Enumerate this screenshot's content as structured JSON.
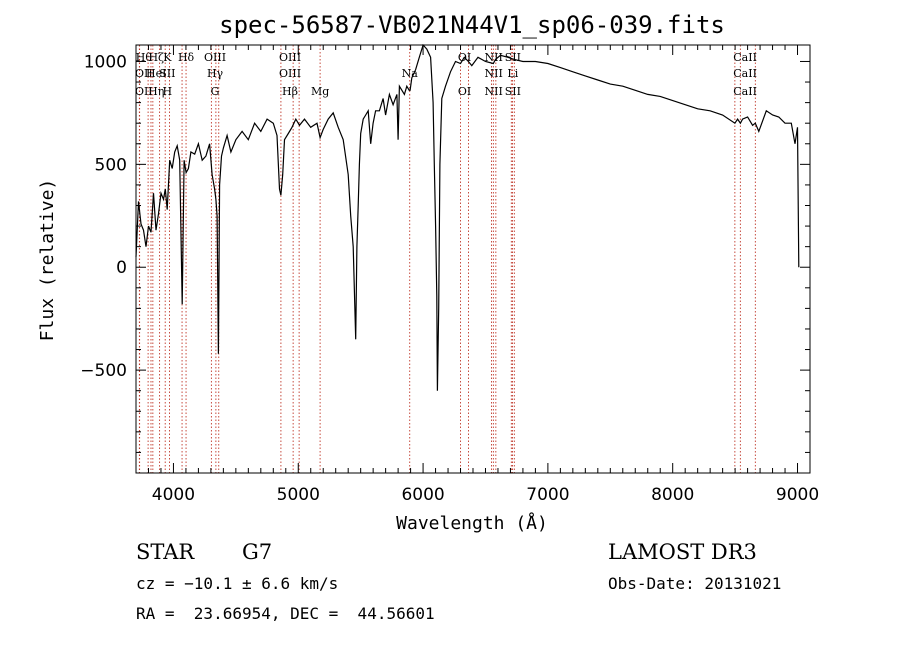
{
  "chart_data": {
    "type": "line",
    "title": "spec-56587-VB021N44V1_sp06-039.fits",
    "xlabel": "Wavelength (Å)",
    "ylabel": "Flux (relative)",
    "xlim": [
      3700,
      9100
    ],
    "ylim": [
      -1000,
      1080
    ],
    "xticks": [
      4000,
      5000,
      6000,
      7000,
      8000,
      9000
    ],
    "yticks": [
      -500,
      0,
      500,
      1000
    ],
    "xtick_labels": [
      "4000",
      "5000",
      "6000",
      "7000",
      "8000",
      "9000"
    ],
    "ytick_labels": [
      "−500",
      "0",
      "500",
      "1000"
    ],
    "grid": false,
    "series": [
      {
        "x": [
          3700,
          3720,
          3740,
          3760,
          3780,
          3800,
          3820,
          3840,
          3860,
          3880,
          3900,
          3920,
          3935,
          3950,
          3970,
          3990,
          4010,
          4030,
          4050,
          4070,
          4085,
          4101,
          4120,
          4140,
          4170,
          4200,
          4230,
          4260,
          4290,
          4310,
          4330,
          4340,
          4350,
          4360,
          4370,
          4385,
          4400,
          4430,
          4460,
          4500,
          4550,
          4600,
          4650,
          4700,
          4750,
          4800,
          4830,
          4850,
          4861,
          4875,
          4890,
          4920,
          4950,
          4980,
          5010,
          5050,
          5100,
          5150,
          5175,
          5200,
          5240,
          5280,
          5320,
          5360,
          5400,
          5420,
          5440,
          5460,
          5470,
          5480,
          5490,
          5500,
          5520,
          5540,
          5560,
          5580,
          5600,
          5620,
          5650,
          5680,
          5700,
          5730,
          5760,
          5790,
          5800,
          5810,
          5830,
          5850,
          5870,
          5889,
          5896,
          5910,
          5940,
          5970,
          6000,
          6030,
          6060,
          6080,
          6090,
          6100,
          6110,
          6115,
          6125,
          6135,
          6150,
          6180,
          6220,
          6260,
          6300,
          6330,
          6363,
          6390,
          6440,
          6500,
          6563,
          6580,
          6620,
          6680,
          6730,
          6800,
          6900,
          7000,
          7100,
          7200,
          7300,
          7400,
          7500,
          7600,
          7700,
          7800,
          7900,
          8000,
          8100,
          8200,
          8300,
          8400,
          8498,
          8520,
          8542,
          8560,
          8600,
          8640,
          8662,
          8690,
          8750,
          8800,
          8850,
          8900,
          8950,
          8980,
          9000,
          9010
        ],
        "y": [
          50,
          320,
          210,
          180,
          100,
          200,
          170,
          360,
          180,
          260,
          360,
          330,
          380,
          280,
          520,
          480,
          560,
          590,
          520,
          -180,
          520,
          460,
          480,
          560,
          550,
          600,
          520,
          540,
          600,
          450,
          380,
          330,
          250,
          -420,
          400,
          540,
          580,
          640,
          560,
          620,
          660,
          620,
          700,
          660,
          720,
          700,
          640,
          380,
          350,
          450,
          620,
          650,
          680,
          720,
          690,
          720,
          680,
          700,
          630,
          670,
          720,
          750,
          680,
          620,
          450,
          250,
          100,
          -350,
          100,
          300,
          500,
          650,
          720,
          740,
          760,
          600,
          700,
          760,
          760,
          820,
          740,
          840,
          790,
          840,
          620,
          880,
          860,
          840,
          880,
          860,
          860,
          920,
          960,
          1020,
          1080,
          1060,
          1020,
          800,
          500,
          200,
          -140,
          -600,
          -200,
          500,
          820,
          880,
          950,
          1000,
          990,
          1020,
          1000,
          980,
          1020,
          1000,
          990,
          1010,
          1030,
          1020,
          1010,
          1000,
          1000,
          990,
          970,
          950,
          930,
          910,
          890,
          880,
          860,
          840,
          830,
          810,
          790,
          770,
          760,
          740,
          700,
          720,
          700,
          720,
          730,
          690,
          700,
          660,
          760,
          740,
          730,
          700,
          700,
          600,
          680,
          0
        ]
      }
    ],
    "line_markers": [
      {
        "rows": [
          "Hθ",
          "OII",
          "OII"
        ],
        "x": [
          3797,
          3727,
          3729
        ]
      },
      {
        "rows": [
          "Hζ",
          "HeI",
          "Hη"
        ],
        "x": [
          3889,
          3820,
          3835
        ]
      },
      {
        "rows": [
          "K",
          "SII",
          "H"
        ],
        "x": [
          3934,
          4069,
          3968
        ]
      },
      {
        "rows": [
          "Hδ",
          "",
          ""
        ],
        "x": [
          4101
        ]
      },
      {
        "rows": [
          "OIII",
          "Hγ",
          "G"
        ],
        "x": [
          4363,
          4340,
          4304
        ]
      },
      {
        "rows": [
          "OIII",
          "OIII",
          "Hβ"
        ],
        "x": [
          5007,
          4959,
          4861
        ]
      },
      {
        "rows": [
          "",
          "",
          "Mg"
        ],
        "x": [
          5175
        ]
      },
      {
        "rows": [
          "",
          "Na",
          ""
        ],
        "x": [
          5893
        ]
      },
      {
        "rows": [
          "OI",
          "",
          "OI"
        ],
        "x": [
          6300,
          6364
        ]
      },
      {
        "rows": [
          "NII",
          "NII",
          "NII"
        ],
        "x": [
          6548,
          6563,
          6583
        ]
      },
      {
        "rows": [
          "SII",
          "Li",
          "SII"
        ],
        "x": [
          6707,
          6716,
          6731
        ]
      },
      {
        "rows": [
          "CaII",
          "CaII",
          "CaII"
        ],
        "x": [
          8498,
          8542,
          8662
        ]
      }
    ]
  },
  "info": {
    "object_class": "STAR",
    "subclass": "G7",
    "survey": "LAMOST DR3",
    "cz": "cz = −10.1 ± 6.6 km/s",
    "obs_date": "Obs-Date: 20131021",
    "coords": "RA =  23.66954, DEC =  44.56601"
  }
}
